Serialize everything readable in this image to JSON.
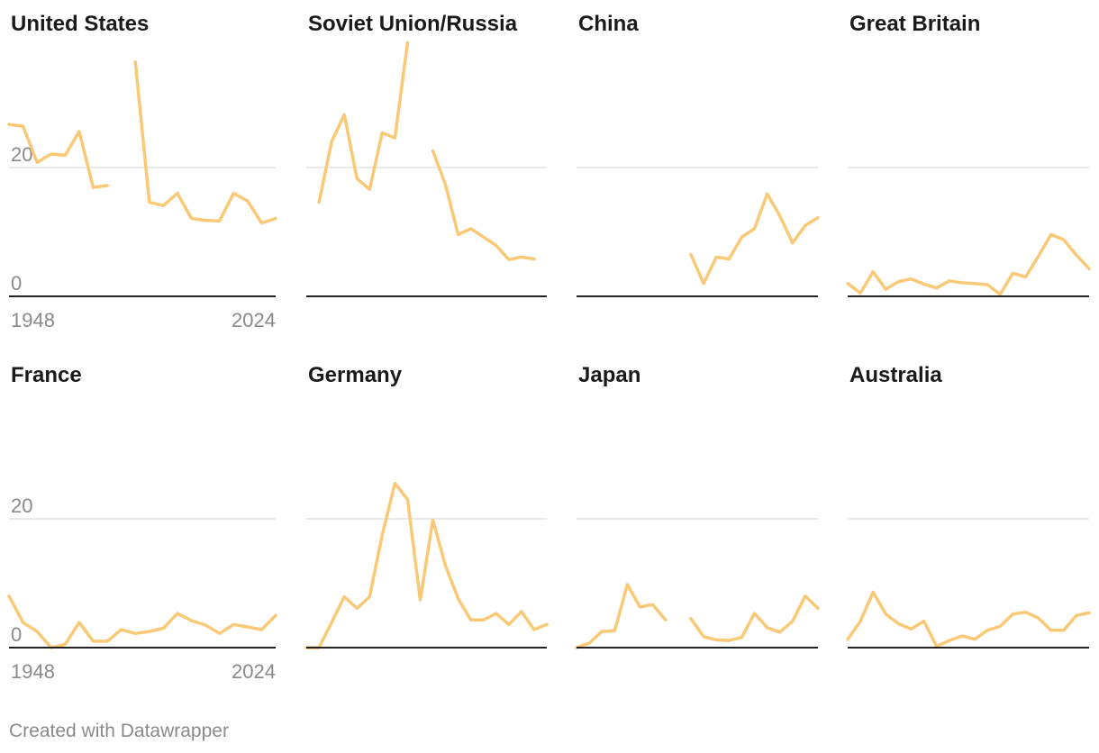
{
  "chart_data": {
    "type": "line",
    "layout": "small-multiples",
    "y_ticks": [
      0,
      20
    ],
    "x_ticks": [
      "1948",
      "2024"
    ],
    "line_color": "#fac977",
    "grid": true,
    "panels": [
      {
        "title": "United States",
        "points": [
          [
            1948,
            26.7
          ],
          [
            1952,
            26.4
          ],
          [
            1956,
            20.8
          ],
          [
            1960,
            22.1
          ],
          [
            1964,
            21.9
          ],
          [
            1968,
            25.6
          ],
          [
            1972,
            16.9
          ],
          [
            1976,
            17.2
          ],
          null,
          [
            1984,
            36.4
          ],
          [
            1988,
            14.6
          ],
          [
            1992,
            14.1
          ],
          [
            1996,
            16.0
          ],
          [
            2000,
            12.1
          ],
          [
            2004,
            11.8
          ],
          [
            2008,
            11.7
          ],
          [
            2012,
            16.0
          ],
          [
            2016,
            14.8
          ],
          [
            2020,
            11.4
          ],
          [
            2024,
            12.1
          ]
        ]
      },
      {
        "title": "Soviet Union/Russia",
        "points": [
          [
            1952,
            14.6
          ],
          [
            1956,
            24.0
          ],
          [
            1960,
            28.2
          ],
          [
            1964,
            18.3
          ],
          [
            1968,
            16.6
          ],
          [
            1972,
            25.4
          ],
          [
            1976,
            24.6
          ],
          [
            1980,
            39.4
          ],
          null,
          [
            1988,
            22.6
          ],
          [
            1992,
            17.3
          ],
          [
            1996,
            9.6
          ],
          [
            2000,
            10.5
          ],
          [
            2004,
            9.2
          ],
          [
            2008,
            7.9
          ],
          [
            2012,
            5.7
          ],
          [
            2016,
            6.1
          ],
          [
            2020,
            5.8
          ]
        ]
      },
      {
        "title": "China",
        "points": [
          [
            1984,
            6.5
          ],
          [
            1988,
            2.0
          ],
          [
            1992,
            6.1
          ],
          [
            1996,
            5.8
          ],
          [
            2000,
            9.2
          ],
          [
            2004,
            10.5
          ],
          [
            2008,
            15.9
          ],
          [
            2012,
            12.5
          ],
          [
            2016,
            8.3
          ],
          [
            2020,
            11.0
          ],
          [
            2024,
            12.2
          ]
        ]
      },
      {
        "title": "Great Britain",
        "points": [
          [
            1948,
            2.0
          ],
          [
            1952,
            0.5
          ],
          [
            1956,
            3.8
          ],
          [
            1960,
            1.1
          ],
          [
            1964,
            2.3
          ],
          [
            1968,
            2.7
          ],
          [
            1972,
            1.9
          ],
          [
            1976,
            1.3
          ],
          [
            1980,
            2.4
          ],
          [
            1984,
            2.1
          ],
          [
            1988,
            2.0
          ],
          [
            1992,
            1.8
          ],
          [
            1996,
            0.3
          ],
          [
            2000,
            3.6
          ],
          [
            2004,
            3.0
          ],
          [
            2008,
            6.2
          ],
          [
            2012,
            9.6
          ],
          [
            2016,
            8.8
          ],
          [
            2020,
            6.4
          ],
          [
            2024,
            4.3
          ]
        ]
      },
      {
        "title": "France",
        "points": [
          [
            1948,
            8.0
          ],
          [
            1952,
            3.9
          ],
          [
            1956,
            2.5
          ],
          [
            1960,
            0.0
          ],
          [
            1964,
            0.5
          ],
          [
            1968,
            3.9
          ],
          [
            1972,
            1.0
          ],
          [
            1976,
            1.0
          ],
          [
            1980,
            2.8
          ],
          [
            1984,
            2.2
          ],
          [
            1988,
            2.5
          ],
          [
            1992,
            3.0
          ],
          [
            1996,
            5.3
          ],
          [
            2000,
            4.2
          ],
          [
            2004,
            3.5
          ],
          [
            2008,
            2.2
          ],
          [
            2012,
            3.6
          ],
          [
            2016,
            3.2
          ],
          [
            2020,
            2.8
          ],
          [
            2024,
            5.0
          ]
        ]
      },
      {
        "title": "Germany",
        "points": [
          [
            1948,
            0.0
          ],
          [
            1952,
            0.0
          ],
          [
            1956,
            3.9
          ],
          [
            1960,
            7.9
          ],
          [
            1964,
            6.1
          ],
          [
            1968,
            7.9
          ],
          [
            1972,
            17.5
          ],
          [
            1976,
            25.5
          ],
          [
            1980,
            23.0
          ],
          [
            1984,
            7.4
          ],
          [
            1988,
            19.8
          ],
          [
            1992,
            12.7
          ],
          [
            1996,
            7.6
          ],
          [
            2000,
            4.3
          ],
          [
            2004,
            4.3
          ],
          [
            2008,
            5.3
          ],
          [
            2012,
            3.6
          ],
          [
            2016,
            5.6
          ],
          [
            2020,
            2.8
          ],
          [
            2024,
            3.6
          ]
        ]
      },
      {
        "title": "Japan",
        "points": [
          [
            1948,
            0.0
          ],
          [
            1952,
            0.7
          ],
          [
            1956,
            2.5
          ],
          [
            1960,
            2.6
          ],
          [
            1964,
            9.8
          ],
          [
            1968,
            6.3
          ],
          [
            1972,
            6.7
          ],
          [
            1976,
            4.3
          ],
          null,
          [
            1984,
            4.5
          ],
          [
            1988,
            1.7
          ],
          [
            1992,
            1.2
          ],
          [
            1996,
            1.1
          ],
          [
            2000,
            1.6
          ],
          [
            2004,
            5.3
          ],
          [
            2008,
            3.1
          ],
          [
            2012,
            2.4
          ],
          [
            2016,
            4.1
          ],
          [
            2020,
            8.0
          ],
          [
            2024,
            6.1
          ]
        ]
      },
      {
        "title": "Australia",
        "points": [
          [
            1948,
            1.3
          ],
          [
            1952,
            4.1
          ],
          [
            1956,
            8.6
          ],
          [
            1960,
            5.2
          ],
          [
            1964,
            3.7
          ],
          [
            1968,
            2.9
          ],
          [
            1972,
            4.1
          ],
          [
            1976,
            0.2
          ],
          [
            1980,
            1.1
          ],
          [
            1984,
            1.8
          ],
          [
            1988,
            1.3
          ],
          [
            1992,
            2.7
          ],
          [
            1996,
            3.3
          ],
          [
            2000,
            5.2
          ],
          [
            2004,
            5.5
          ],
          [
            2008,
            4.6
          ],
          [
            2012,
            2.7
          ],
          [
            2016,
            2.7
          ],
          [
            2020,
            5.0
          ],
          [
            2024,
            5.4
          ]
        ]
      }
    ]
  },
  "footer": {
    "credit": "Created with Datawrapper"
  }
}
